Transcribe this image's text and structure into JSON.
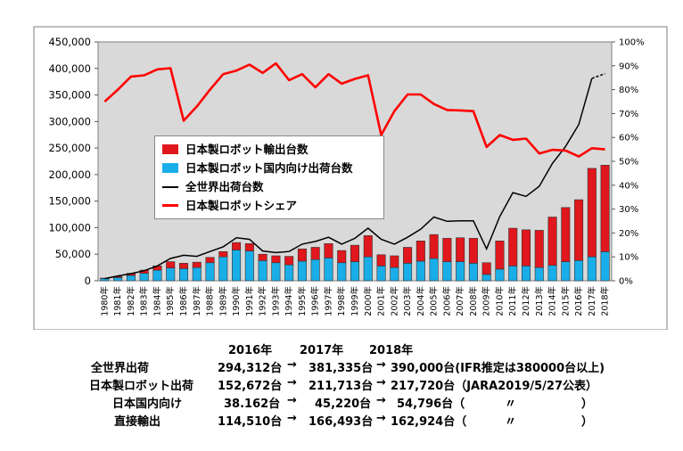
{
  "chart_data": {
    "type": "bar+line",
    "categories": [
      "1980年",
      "1981年",
      "1982年",
      "1983年",
      "1984年",
      "1985年",
      "1986年",
      "1987年",
      "1988年",
      "1989年",
      "1990年",
      "1991年",
      "1992年",
      "1993年",
      "1994年",
      "1995年",
      "1996年",
      "1997年",
      "1998年",
      "1999年",
      "2000年",
      "2001年",
      "2002年",
      "2003年",
      "2004年",
      "2005年",
      "2006年",
      "2007年",
      "2008年",
      "2009年",
      "2010年",
      "2011年",
      "2012年",
      "2013年",
      "2014年",
      "2015年",
      "2016年",
      "2017年",
      "2018年"
    ],
    "y_left": {
      "min": 0,
      "max": 450000,
      "ticks": [
        "0",
        "50,000",
        "100,000",
        "150,000",
        "200,000",
        "250,000",
        "300,000",
        "350,000",
        "400,000",
        "450,000"
      ]
    },
    "y_right": {
      "min": 0,
      "max": 100,
      "ticks": [
        "0%",
        "10%",
        "20%",
        "30%",
        "40%",
        "50%",
        "60%",
        "70%",
        "80%",
        "90%",
        "100%"
      ]
    },
    "series": [
      {
        "name": "日本製ロボット国内向け出荷台数",
        "kind": "bar-stack-bottom",
        "color": "#19aee8",
        "values": [
          4000,
          6000,
          10000,
          14000,
          20000,
          24000,
          23000,
          25000,
          34000,
          45000,
          58000,
          56000,
          38000,
          34000,
          30000,
          37000,
          40000,
          43000,
          34000,
          36000,
          45000,
          28000,
          25000,
          33000,
          37000,
          42000,
          36000,
          36000,
          33000,
          12000,
          22000,
          28000,
          28000,
          25000,
          29000,
          36000,
          38162,
          45220,
          54796
        ]
      },
      {
        "name": "日本製ロボット輸出台数",
        "kind": "bar-stack-top",
        "color": "#e0171c",
        "values": [
          1000,
          2000,
          4000,
          6000,
          8000,
          12000,
          10000,
          10000,
          10000,
          10000,
          14000,
          14000,
          12000,
          13000,
          16000,
          23000,
          23000,
          27000,
          23000,
          31000,
          40000,
          21000,
          22000,
          30000,
          38000,
          45000,
          44000,
          45000,
          47000,
          22000,
          53000,
          71000,
          68000,
          70000,
          91000,
          102000,
          114510,
          166493,
          162924
        ]
      },
      {
        "name": "全世界出荷台数",
        "kind": "line-left",
        "color": "#000000",
        "values": [
          null,
          null,
          null,
          null,
          null,
          null,
          null,
          null,
          null,
          null,
          null,
          null,
          null,
          null,
          null,
          null,
          null,
          null,
          null,
          null,
          null,
          null,
          null,
          null,
          null,
          null,
          null,
          null,
          null,
          null,
          null,
          null,
          null,
          null,
          null,
          null,
          null,
          null,
          null
        ],
        "points": [
          4000,
          9000,
          13500,
          19000,
          28000,
          42000,
          48000,
          46000,
          55000,
          64000,
          81000,
          78000,
          56000,
          53000,
          55000,
          69000,
          74000,
          82000,
          69000,
          80000,
          99000,
          78000,
          69000,
          82000,
          97000,
          120000,
          112000,
          113000,
          113000,
          60000,
          121000,
          166000,
          159000,
          178000,
          221000,
          253000,
          294312,
          381335,
          390000
        ],
        "projected_from_index": 37
      },
      {
        "name": "日本製ロボットシェア",
        "kind": "line-right",
        "color": "#ff0000",
        "unit": "%",
        "values": [
          75,
          80,
          85.5,
          86,
          88.5,
          89,
          67,
          73,
          80,
          86.5,
          88,
          90.5,
          87,
          91,
          84,
          86.5,
          81,
          86.5,
          82.5,
          84.5,
          86,
          61,
          71,
          78,
          78,
          74,
          71.5,
          71.3,
          71,
          56,
          61,
          59,
          59.5,
          53.3,
          54.8,
          54.5,
          52,
          55.5,
          55
        ]
      }
    ]
  },
  "legend": {
    "items": [
      {
        "label": "日本製ロボット輸出台数",
        "color": "#e0171c",
        "shape": "box"
      },
      {
        "label": "日本製ロボット国内向け出荷台数",
        "color": "#19aee8",
        "shape": "box"
      },
      {
        "label": "全世界出荷台数",
        "color": "#000000",
        "shape": "line"
      },
      {
        "label": "日本製ロボットシェア",
        "color": "#ff0000",
        "shape": "line"
      }
    ]
  },
  "summary_table": {
    "years": [
      "2016年",
      "2017年",
      "2018年"
    ],
    "rows": [
      {
        "label": "全世界出荷",
        "v2016": "294,312台",
        "arrow1": "→",
        "v2017": "381,335台",
        "arrow2": "→",
        "v2018": "390,000台(IFR推定は380000台以上)"
      },
      {
        "label": "日本製ロボット出荷",
        "v2016": "152,672台",
        "arrow1": "→",
        "v2017": "211,713台",
        "arrow2": "→",
        "v2018": "217,720台（JARA2019/5/27公表）"
      },
      {
        "label": "日本国内向け",
        "v2016": "38.162台",
        "arrow1": "→",
        "v2017": "45,220台",
        "arrow2": "→",
        "v2018": "54,796台（",
        "ditto": "〃",
        "close": "）"
      },
      {
        "label": "直接輸出",
        "v2016": "114,510台",
        "arrow1": "→",
        "v2017": "166,493台",
        "arrow2": "→",
        "v2018": "162,924台（",
        "ditto": "〃",
        "close": "）"
      }
    ]
  }
}
